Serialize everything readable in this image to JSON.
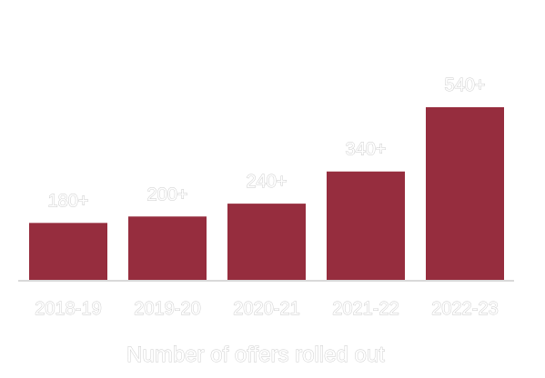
{
  "chart_data": {
    "type": "bar",
    "title": "",
    "xlabel": "Number of offers rolled out",
    "ylabel": "",
    "categories": [
      "2018-19",
      "2019-20",
      "2020-21",
      "2021-22",
      "2022-23"
    ],
    "values": [
      180,
      200,
      240,
      340,
      540
    ],
    "value_labels": [
      "180+",
      "200+",
      "240+",
      "340+",
      "540+"
    ],
    "ylim": [
      0,
      540
    ],
    "grid": false,
    "legend": "none",
    "bar_color": "#962d3e",
    "baseline_color": "#d9d9d9",
    "label_color": "#c9c9c9"
  }
}
